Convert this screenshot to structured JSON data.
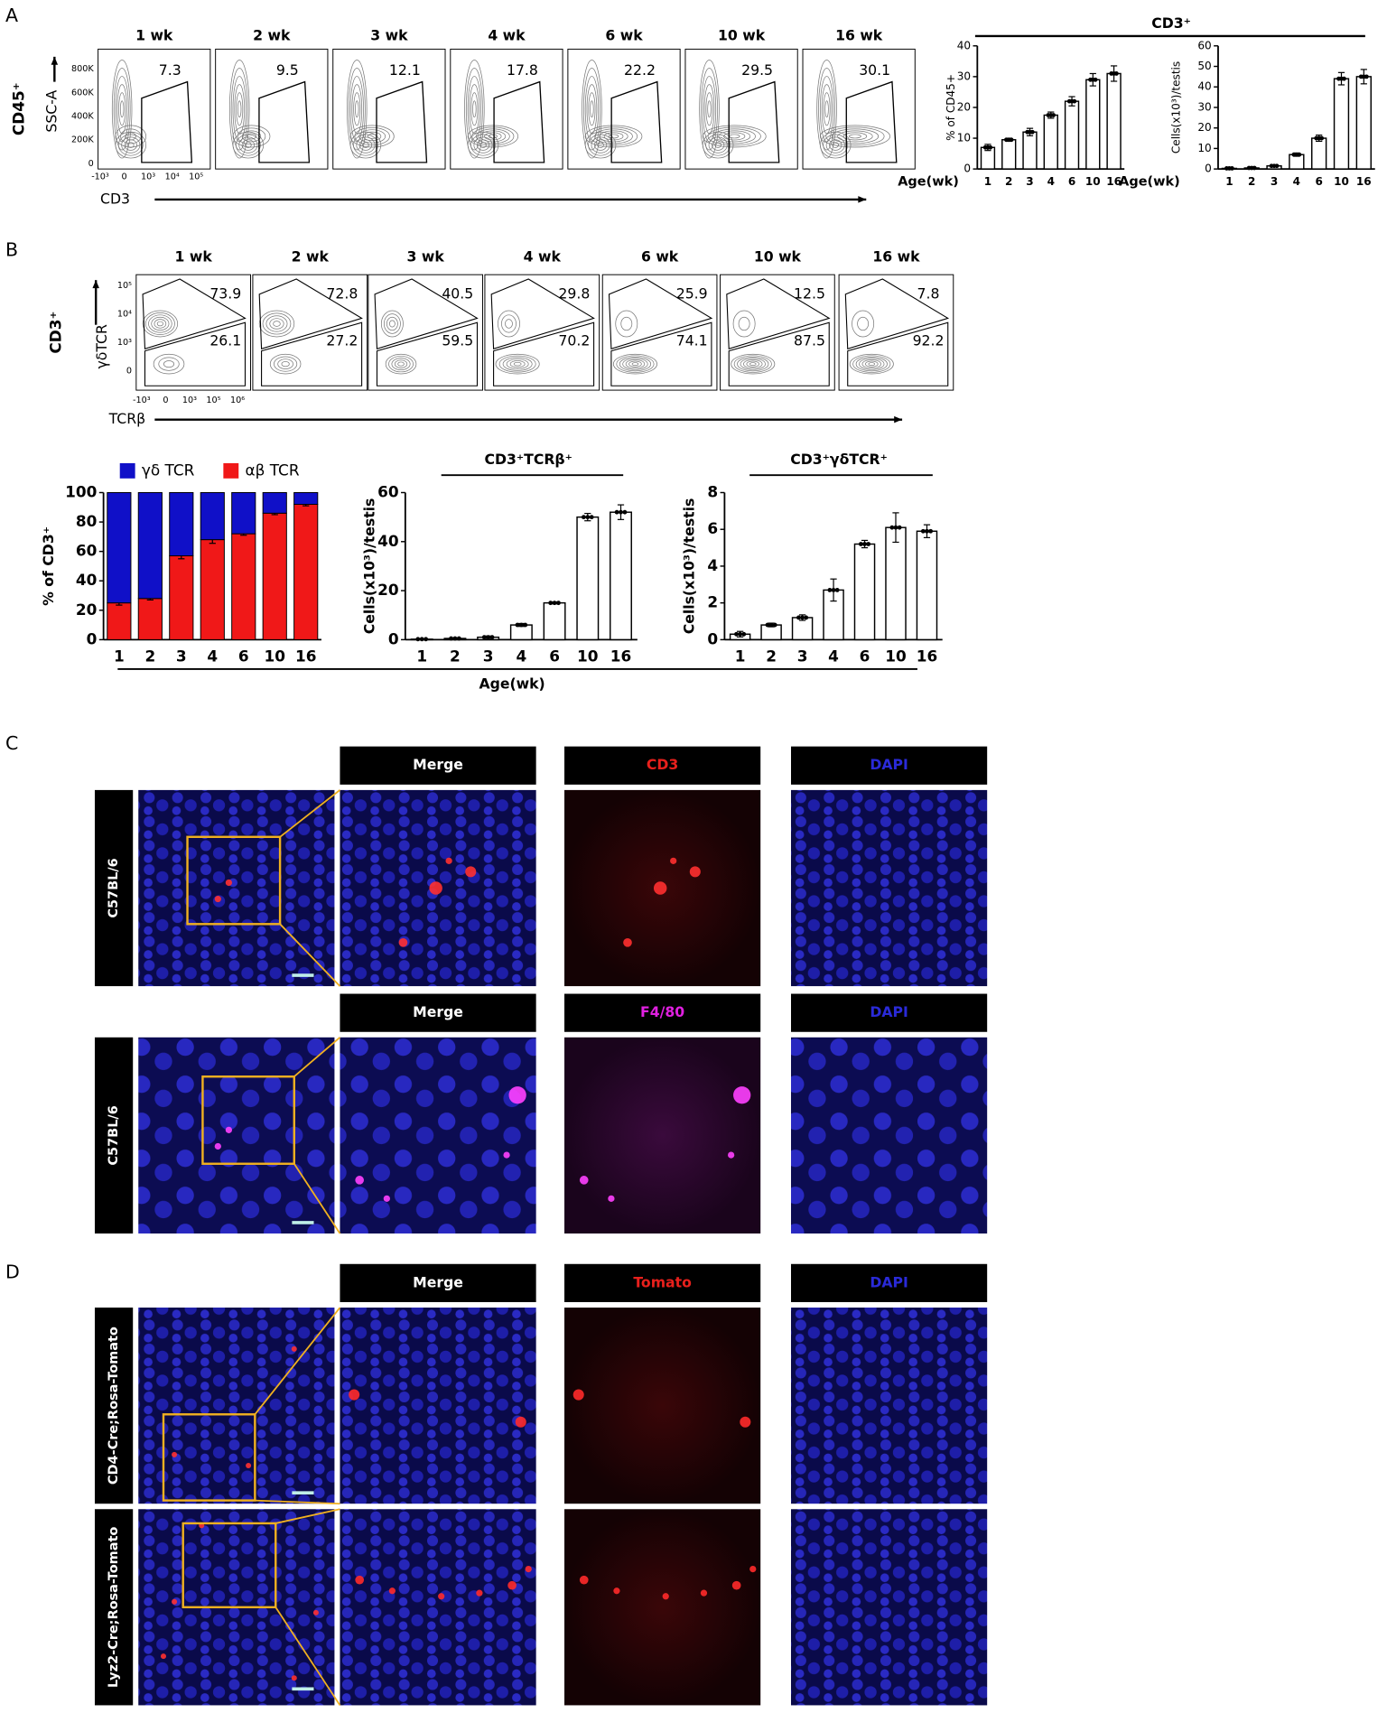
{
  "panel_labels": [
    "A",
    "B",
    "C",
    "D"
  ],
  "flow_a": {
    "row_label": "CD45⁺",
    "y_label": "SSC-A",
    "x_label": "CD3",
    "yticks": [
      "800K",
      "600K",
      "400K",
      "200K",
      "0"
    ],
    "xticks": [
      "-10³",
      "0",
      "10³",
      "10⁴",
      "10⁵"
    ],
    "columns": [
      {
        "title": "1 wk",
        "gate": 7.3
      },
      {
        "title": "2 wk",
        "gate": 9.5
      },
      {
        "title": "3 wk",
        "gate": 12.1
      },
      {
        "title": "4 wk",
        "gate": 17.8
      },
      {
        "title": "6 wk",
        "gate": 22.2
      },
      {
        "title": "10 wk",
        "gate": 29.5
      },
      {
        "title": "16 wk",
        "gate": 30.1
      }
    ]
  },
  "flow_b": {
    "row_label": "CD3⁺",
    "y_label": "γδTCR",
    "x_label": "TCRβ",
    "yticks": [
      "10⁵",
      "10⁴",
      "10³",
      "0"
    ],
    "xticks": [
      "-10³",
      "0",
      "10³",
      "10⁵",
      "10⁶"
    ],
    "columns": [
      {
        "title": "1 wk",
        "top": 73.9,
        "bottom": 26.1
      },
      {
        "title": "2 wk",
        "top": 72.8,
        "bottom": 27.2
      },
      {
        "title": "3 wk",
        "top": 40.5,
        "bottom": 59.5
      },
      {
        "title": "4 wk",
        "top": 29.8,
        "bottom": 70.2
      },
      {
        "title": "6 wk",
        "top": 25.9,
        "bottom": 74.1
      },
      {
        "title": "10 wk",
        "top": 12.5,
        "bottom": 87.5
      },
      {
        "title": "16 wk",
        "top": 7.8,
        "bottom": 92.2
      }
    ]
  },
  "a_group_title": "CD3⁺",
  "b_shared_x_label": "Age(wk)",
  "chart_data": [
    {
      "type": "bar",
      "y_label": "% of CD45+",
      "x_label": "Age(wk)",
      "categories": [
        "1",
        "2",
        "3",
        "4",
        "6",
        "10",
        "16"
      ],
      "values": [
        7,
        9.5,
        12,
        17.5,
        22,
        29,
        31
      ],
      "errors": [
        1,
        0.5,
        1.2,
        1,
        1.5,
        2,
        2.5
      ],
      "ylim": [
        0,
        40
      ],
      "yticks": [
        0,
        10,
        20,
        30,
        40
      ]
    },
    {
      "type": "bar",
      "y_label": "Cells(x10³)/testis",
      "x_label": "Age(wk)",
      "categories": [
        "1",
        "2",
        "3",
        "4",
        "6",
        "10",
        "16"
      ],
      "values": [
        0.3,
        0.5,
        1.5,
        7,
        15,
        44,
        45
      ],
      "errors": [
        0.2,
        0.3,
        0.5,
        0.8,
        1.5,
        3,
        3.5
      ],
      "ylim": [
        0,
        60
      ],
      "yticks": [
        0,
        10,
        20,
        30,
        40,
        50,
        60
      ]
    },
    {
      "type": "stacked_bar",
      "y_label": "% of CD3⁺",
      "categories": [
        "1",
        "2",
        "3",
        "4",
        "6",
        "10",
        "16"
      ],
      "series": [
        {
          "name": "γδ TCR",
          "color": "#1010c8",
          "values": [
            75,
            72,
            43,
            32,
            28,
            14,
            8
          ]
        },
        {
          "name": "αβ TCR",
          "color": "#f01818",
          "values": [
            25,
            28,
            57,
            68,
            72,
            86,
            92
          ],
          "errors": [
            1.5,
            1,
            2,
            2.5,
            1,
            1,
            1
          ]
        }
      ],
      "ylim": [
        0,
        100
      ],
      "yticks": [
        0,
        20,
        40,
        60,
        80,
        100
      ]
    },
    {
      "type": "bar",
      "title": "CD3⁺TCRβ⁺",
      "y_label": "Cells(x10³)/testis",
      "categories": [
        "1",
        "2",
        "3",
        "4",
        "6",
        "10",
        "16"
      ],
      "values": [
        0.2,
        0.5,
        1,
        6,
        15,
        50,
        52
      ],
      "errors": [
        0.1,
        0.3,
        0.5,
        0.6,
        0.4,
        1.5,
        3
      ],
      "ylim": [
        0,
        60
      ],
      "yticks": [
        0,
        20,
        40,
        60
      ]
    },
    {
      "type": "bar",
      "title": "CD3⁺γδTCR⁺",
      "y_label": "Cells(x10³)/testis",
      "categories": [
        "1",
        "2",
        "3",
        "4",
        "6",
        "10",
        "16"
      ],
      "values": [
        0.3,
        0.8,
        1.2,
        2.7,
        5.2,
        6.1,
        5.9
      ],
      "errors": [
        0.15,
        0.1,
        0.15,
        0.6,
        0.2,
        0.8,
        0.35
      ],
      "ylim": [
        0,
        8
      ],
      "yticks": [
        0,
        2,
        4,
        6,
        8
      ]
    }
  ],
  "panel_c": {
    "rows": [
      {
        "label": "C57BL/6",
        "headers": [
          "Merge",
          "CD3",
          "DAPI"
        ],
        "header_colors": [
          "#ffffff",
          "#e8201c",
          "#2a2ad8"
        ]
      },
      {
        "label": "C57BL/6",
        "headers": [
          "Merge",
          "F4/80",
          "DAPI"
        ],
        "header_colors": [
          "#ffffff",
          "#e020e0",
          "#2a2ad8"
        ]
      }
    ]
  },
  "panel_d": {
    "rows": [
      {
        "label": "CD4-Cre;Rosa-Tomato",
        "headers": [
          "Merge",
          "Tomato",
          "DAPI"
        ],
        "header_colors": [
          "#ffffff",
          "#e8201c",
          "#2a2ad8"
        ]
      },
      {
        "label": "Lyz2-Cre;Rosa-Tomato"
      }
    ]
  }
}
